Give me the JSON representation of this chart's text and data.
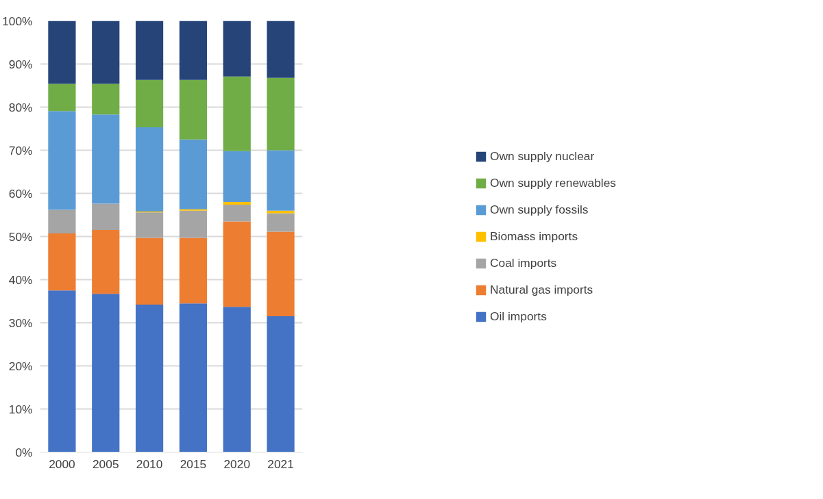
{
  "chart_data": {
    "type": "bar",
    "stacked": true,
    "categories": [
      "2000",
      "2005",
      "2010",
      "2015",
      "2020",
      "2021"
    ],
    "series": [
      {
        "name": "Oil imports",
        "color": "#4472c4",
        "values": [
          37.5,
          36.7,
          34.2,
          34.5,
          33.7,
          31.5
        ]
      },
      {
        "name": "Natural gas imports",
        "color": "#ed7d31",
        "values": [
          13.2,
          14.8,
          15.5,
          15.2,
          19.8,
          19.6
        ]
      },
      {
        "name": "Coal imports",
        "color": "#a5a5a5",
        "values": [
          5.5,
          6.1,
          5.9,
          6.3,
          3.9,
          4.3
        ]
      },
      {
        "name": "Biomass imports",
        "color": "#ffc000",
        "values": [
          0,
          0,
          0.2,
          0.3,
          0.6,
          0.6
        ]
      },
      {
        "name": "Own supply fossils",
        "color": "#5b9bd5",
        "values": [
          22.9,
          20.7,
          19.5,
          16.2,
          11.8,
          14.0
        ]
      },
      {
        "name": "Own supply renewables",
        "color": "#70ad47",
        "values": [
          6.3,
          7.1,
          11.0,
          13.8,
          17.3,
          16.8
        ]
      },
      {
        "name": "Own supply nuclear",
        "color": "#264478",
        "values": [
          14.6,
          14.6,
          13.7,
          13.7,
          12.9,
          13.2
        ]
      }
    ],
    "ylim": [
      0,
      100
    ],
    "yticks": [
      {
        "value": 0,
        "label": "0%"
      },
      {
        "value": 10,
        "label": "10%"
      },
      {
        "value": 20,
        "label": "20%"
      },
      {
        "value": 30,
        "label": "30%"
      },
      {
        "value": 40,
        "label": "40%"
      },
      {
        "value": 50,
        "label": "50%"
      },
      {
        "value": 60,
        "label": "60%"
      },
      {
        "value": 70,
        "label": "70%"
      },
      {
        "value": 80,
        "label": "80%"
      },
      {
        "value": 90,
        "label": "90%"
      },
      {
        "value": 100,
        "label": "100%"
      }
    ],
    "grid": "y",
    "legend": "right"
  }
}
